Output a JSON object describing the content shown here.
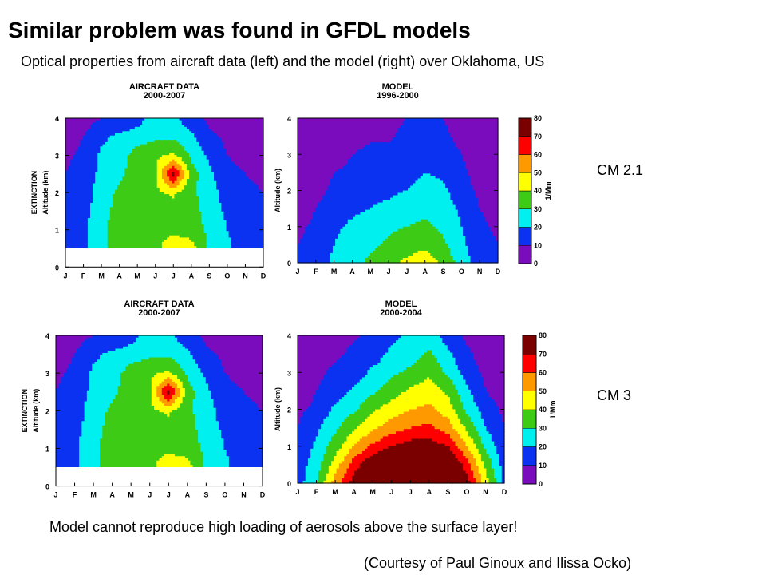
{
  "slide": {
    "title": "Similar problem was found in GFDL models",
    "subtitle": "Optical properties from aircraft data (left) and the model (right) over Oklahoma, US",
    "note": "Model cannot reproduce high loading of aerosols above the surface layer!",
    "credit": "(Courtesy of Paul Ginoux and Ilissa Ocko)",
    "row1_label": "CM 2.1",
    "row2_label": "CM 3"
  },
  "colors": {
    "levels": [
      "#7b0cbe",
      "#0a32f0",
      "#00f0f0",
      "#3ecb16",
      "#ffff00",
      "#ff9900",
      "#ff0000",
      "#7a0000"
    ]
  },
  "chart_data": [
    {
      "type": "heatmap",
      "panel": "row1-aircraft",
      "title": "AIRCRAFT DATA",
      "subtitle": "2000-2007",
      "ylabel_outer": "EXTINCTION",
      "ylabel": "Altitude (km)",
      "x_ticks": [
        "J",
        "F",
        "M",
        "A",
        "M",
        "J",
        "J",
        "A",
        "S",
        "O",
        "N",
        "D"
      ],
      "y_ticks": [
        "0",
        "1",
        "2",
        "3",
        "4"
      ],
      "ylim": [
        0,
        4
      ],
      "no_data_below_km": 0.5,
      "altitudes_km": [
        0.5,
        1.0,
        1.5,
        2.0,
        2.5,
        3.0,
        3.5,
        4.0
      ],
      "values": [
        [
          14,
          18,
          28,
          35,
          35,
          38,
          45,
          45,
          28,
          22,
          15,
          12
        ],
        [
          13,
          18,
          28,
          35,
          35,
          38,
          38,
          35,
          28,
          20,
          15,
          12
        ],
        [
          12,
          17,
          25,
          35,
          35,
          35,
          35,
          35,
          25,
          18,
          15,
          12
        ],
        [
          11,
          15,
          25,
          32,
          32,
          38,
          42,
          32,
          25,
          15,
          12,
          10
        ],
        [
          10,
          15,
          22,
          28,
          35,
          38,
          75,
          35,
          22,
          12,
          10,
          8
        ],
        [
          8,
          12,
          22,
          25,
          35,
          38,
          42,
          28,
          18,
          10,
          8,
          6
        ],
        [
          6,
          10,
          18,
          22,
          25,
          28,
          28,
          22,
          12,
          8,
          6,
          6
        ],
        [
          5,
          6,
          10,
          12,
          15,
          28,
          22,
          14,
          8,
          6,
          5,
          5
        ]
      ]
    },
    {
      "type": "heatmap",
      "panel": "row1-model",
      "title": "MODEL",
      "subtitle": "1996-2000",
      "ylabel": "Altitude (km)",
      "x_ticks": [
        "J",
        "F",
        "M",
        "A",
        "M",
        "J",
        "J",
        "A",
        "S",
        "O",
        "N",
        "D"
      ],
      "y_ticks": [
        "0",
        "1",
        "2",
        "3",
        "4"
      ],
      "ylim": [
        0,
        4
      ],
      "altitudes_km": [
        0.0,
        0.5,
        1.0,
        1.5,
        2.0,
        2.5,
        3.0,
        3.5,
        4.0
      ],
      "values": [
        [
          12,
          15,
          22,
          26,
          32,
          38,
          42,
          46,
          38,
          25,
          15,
          10
        ],
        [
          10,
          13,
          20,
          25,
          28,
          32,
          35,
          38,
          32,
          22,
          14,
          10
        ],
        [
          8,
          12,
          18,
          22,
          25,
          28,
          30,
          32,
          28,
          20,
          12,
          8
        ],
        [
          5,
          10,
          15,
          18,
          20,
          22,
          25,
          28,
          25,
          18,
          10,
          6
        ],
        [
          3,
          7,
          12,
          15,
          18,
          18,
          20,
          25,
          22,
          14,
          8,
          5
        ],
        [
          2,
          5,
          10,
          12,
          15,
          15,
          16,
          20,
          18,
          12,
          6,
          4
        ],
        [
          1,
          3,
          6,
          10,
          12,
          12,
          12,
          15,
          15,
          10,
          4,
          2
        ],
        [
          1,
          2,
          4,
          6,
          9,
          9,
          12,
          12,
          12,
          7,
          2,
          1
        ],
        [
          1,
          1,
          2,
          4,
          6,
          8,
          10,
          12,
          10,
          5,
          1,
          1
        ]
      ]
    },
    {
      "type": "heatmap",
      "panel": "row2-aircraft",
      "title": "AIRCRAFT DATA",
      "subtitle": "2000-2007",
      "ylabel_outer": "EXTINCTION",
      "ylabel": "Altitude (km)",
      "x_ticks": [
        "J",
        "F",
        "M",
        "A",
        "M",
        "J",
        "J",
        "A",
        "S",
        "O",
        "N",
        "D"
      ],
      "y_ticks": [
        "0",
        "1",
        "2",
        "3",
        "4"
      ],
      "ylim": [
        0,
        4
      ],
      "no_data_below_km": 0.5,
      "altitudes_km": [
        0.5,
        1.0,
        1.5,
        2.0,
        2.5,
        3.0,
        3.5,
        4.0
      ],
      "values": [
        [
          14,
          18,
          28,
          35,
          35,
          38,
          45,
          45,
          28,
          22,
          15,
          12
        ],
        [
          13,
          18,
          28,
          35,
          35,
          38,
          38,
          35,
          28,
          20,
          15,
          12
        ],
        [
          12,
          17,
          25,
          35,
          35,
          35,
          35,
          35,
          25,
          18,
          15,
          12
        ],
        [
          11,
          15,
          25,
          32,
          32,
          38,
          42,
          32,
          25,
          15,
          12,
          10
        ],
        [
          10,
          15,
          22,
          28,
          35,
          38,
          75,
          35,
          22,
          12,
          10,
          8
        ],
        [
          8,
          12,
          22,
          25,
          35,
          38,
          42,
          28,
          18,
          10,
          8,
          6
        ],
        [
          6,
          10,
          18,
          22,
          25,
          28,
          28,
          22,
          12,
          8,
          6,
          6
        ],
        [
          5,
          6,
          10,
          12,
          15,
          28,
          22,
          14,
          8,
          6,
          5,
          5
        ]
      ]
    },
    {
      "type": "heatmap",
      "panel": "row2-model",
      "title": "MODEL",
      "subtitle": "2000-2004",
      "ylabel": "Altitude (km)",
      "x_ticks": [
        "J",
        "F",
        "M",
        "A",
        "M",
        "J",
        "J",
        "A",
        "S",
        "O",
        "N",
        "D"
      ],
      "y_ticks": [
        "0",
        "1",
        "2",
        "3",
        "4"
      ],
      "ylim": [
        0,
        4
      ],
      "altitudes_km": [
        0.0,
        0.5,
        1.0,
        1.5,
        2.0,
        2.5,
        3.0,
        3.5,
        4.0
      ],
      "values": [
        [
          15,
          30,
          55,
          75,
          85,
          85,
          85,
          85,
          85,
          75,
          45,
          18
        ],
        [
          15,
          25,
          45,
          65,
          80,
          85,
          85,
          85,
          85,
          65,
          38,
          15
        ],
        [
          12,
          22,
          35,
          50,
          62,
          70,
          75,
          75,
          70,
          50,
          28,
          12
        ],
        [
          10,
          18,
          28,
          38,
          48,
          55,
          60,
          62,
          55,
          38,
          20,
          10
        ],
        [
          8,
          12,
          22,
          28,
          38,
          45,
          50,
          52,
          45,
          28,
          15,
          8
        ],
        [
          5,
          10,
          15,
          22,
          28,
          35,
          42,
          45,
          38,
          22,
          10,
          5
        ],
        [
          4,
          8,
          12,
          15,
          22,
          28,
          32,
          38,
          28,
          15,
          8,
          4
        ],
        [
          3,
          5,
          8,
          12,
          15,
          22,
          25,
          32,
          22,
          12,
          5,
          3
        ],
        [
          2,
          4,
          6,
          9,
          12,
          18,
          22,
          25,
          15,
          8,
          4,
          2
        ]
      ]
    }
  ],
  "colorbars": [
    {
      "panel": "row1-colorbar",
      "unit": "1/Mm",
      "levels": [
        "0",
        "10",
        "20",
        "30",
        "40",
        "50",
        "60",
        "70",
        "80"
      ]
    },
    {
      "panel": "row2-colorbar",
      "unit": "1/Mm",
      "levels": [
        "0",
        "10",
        "20",
        "30",
        "40",
        "50",
        "60",
        "70",
        "80"
      ]
    }
  ]
}
